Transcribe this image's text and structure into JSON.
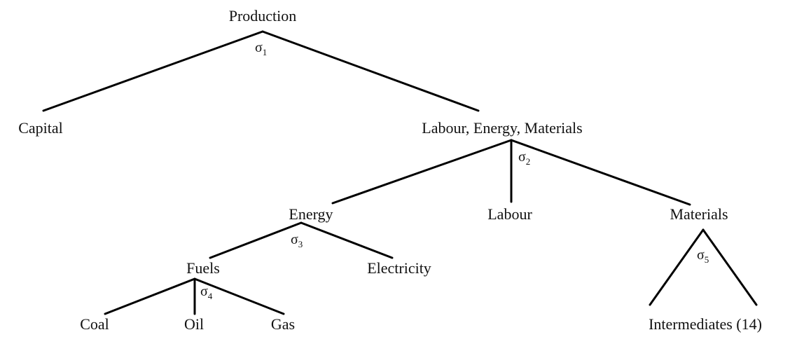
{
  "nodes": [
    {
      "label": "Production"
    },
    {
      "label": "Capital"
    },
    {
      "label": "Labour, Energy, Materials"
    },
    {
      "label": "Energy"
    },
    {
      "label": "Labour"
    },
    {
      "label": "Materials"
    },
    {
      "label": "Fuels"
    },
    {
      "label": "Electricity"
    },
    {
      "label": "Coal"
    },
    {
      "label": "Oil"
    },
    {
      "label": "Gas"
    },
    {
      "label": "Intermediates (14)"
    }
  ],
  "elasticities": [
    {
      "symbol": "σ",
      "subscript": "1"
    },
    {
      "symbol": "σ",
      "subscript": "2"
    },
    {
      "symbol": "σ",
      "subscript": "3"
    },
    {
      "symbol": "σ",
      "subscript": "4"
    },
    {
      "symbol": "σ",
      "subscript": "5"
    }
  ]
}
